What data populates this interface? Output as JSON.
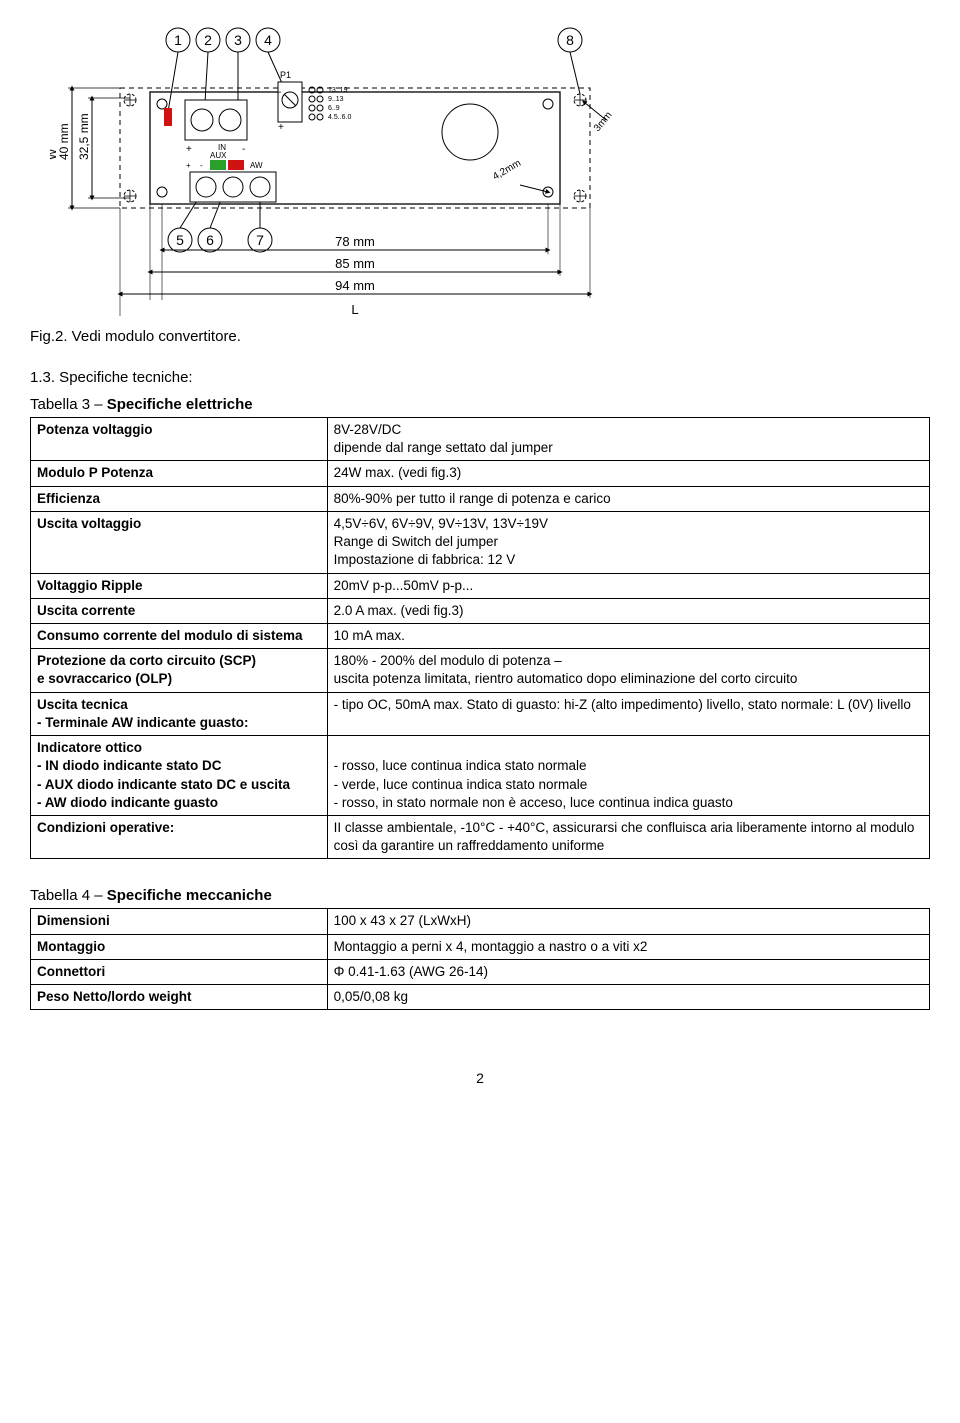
{
  "diagram": {
    "callouts_top": [
      "1",
      "2",
      "3",
      "4",
      "8"
    ],
    "callouts_bottom_left": [
      "5",
      "6",
      "7"
    ],
    "W_label": "W",
    "dim_W_outer": "40 mm",
    "dim_W_inner": "32,5 mm",
    "dim_L_78": "78 mm",
    "dim_L_85": "85 mm",
    "dim_L_94": "94 mm",
    "L_label": "L",
    "hole_dim_42": "4,2mm",
    "hole_dim_3": "3mm",
    "p1_label": "P1",
    "range_lines": [
      "13..19",
      "9..13",
      "6..9",
      "4.5..6.0"
    ],
    "in_plus": "+",
    "in_minus": "-",
    "in_label": "IN",
    "aux_plus": "+",
    "aux_minus": "-",
    "aux_label": "AUX",
    "aw_label": "AW",
    "colors": {
      "board_stroke": "#000000",
      "dashed": "#000000",
      "green": "#2aa02a",
      "red": "#d01212"
    }
  },
  "fig2_caption": "Fig.2. Vedi modulo convertitore.",
  "section13": "1.3. Specifiche tecniche:",
  "table3": {
    "caption_prefix": "Tabella 3 – ",
    "caption_title": "Specifiche elettriche",
    "rows": [
      {
        "k": "Potenza voltaggio",
        "v": "8V-28V/DC\ndipende dal range settato dal jumper"
      },
      {
        "k": "Modulo P Potenza",
        "v": "24W max. (vedi fig.3)"
      },
      {
        "k": "Efficienza",
        "v": "80%-90% per tutto il range di potenza e carico"
      },
      {
        "k": "Uscita voltaggio",
        "v": "4,5V÷6V, 6V÷9V, 9V÷13V,  13V÷19V\nRange di Switch del jumper\nImpostazione di fabbrica: 12 V"
      },
      {
        "k": "Voltaggio Ripple",
        "v": "20mV p-p...50mV p-p..."
      },
      {
        "k": "Uscita corrente",
        "v": "2.0 A max. (vedi fig.3)"
      },
      {
        "k": "Consumo corrente del modulo di sistema",
        "v": "10 mA max."
      },
      {
        "k": "Protezione da corto circuito (SCP)\ne sovraccarico (OLP)",
        "v": "180% - 200% del modulo di potenza –\nuscita potenza limitata, rientro automatico dopo eliminazione del corto circuito"
      },
      {
        "k": "Uscita tecnica\n- Terminale AW indicante guasto:",
        "v": "- tipo OC, 50mA max. Stato di guasto: hi-Z (alto impedimento) livello, stato normale:  L (0V) livello"
      },
      {
        "k": "Indicatore ottico\n- IN diodo indicante stato DC\n- AUX diodo indicante stato DC e uscita\n- AW diodo indicante guasto",
        "v": "\n- rosso, luce continua  indica stato normale\n- verde, luce continua indica stato normale\n- rosso, in stato normale non è acceso,  luce continua indica guasto"
      },
      {
        "k": "Condizioni operative:",
        "v": "II classe ambientale, -10°C - +40°C, assicurarsi che confluisca aria liberamente intorno al modulo così da garantire un raffreddamento uniforme"
      }
    ]
  },
  "table4": {
    "caption_prefix": "Tabella 4 – ",
    "caption_title": "Specifiche meccaniche",
    "rows": [
      {
        "k": "Dimensioni",
        "v": "100 x 43 x 27 (LxWxH)"
      },
      {
        "k": "Montaggio",
        "v": "Montaggio a perni x 4, montaggio a nastro o a viti x2"
      },
      {
        "k": "Connettori",
        "v": "Φ 0.41-1.63 (AWG 26-14)"
      },
      {
        "k": "Peso Netto/lordo weight",
        "v": "0,05/0,08 kg"
      }
    ]
  },
  "page_number": "2"
}
